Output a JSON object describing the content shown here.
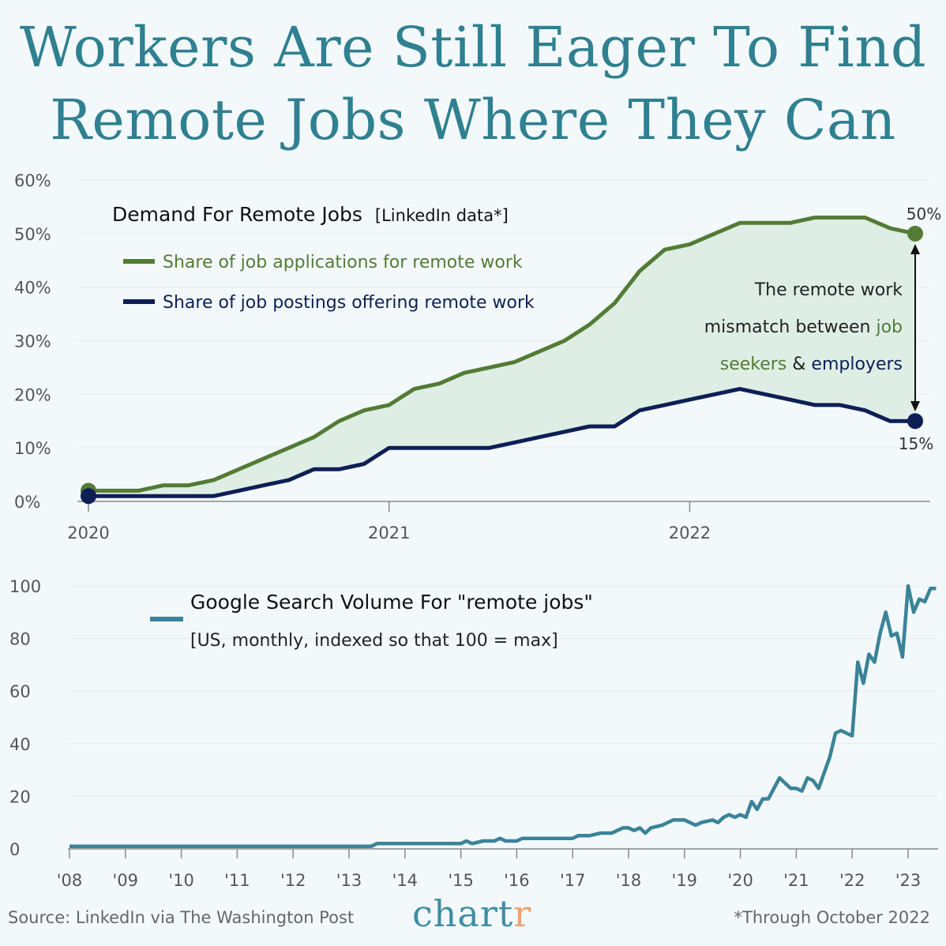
{
  "title": {
    "line1": "Workers Are Still Eager To Find",
    "line2": "Remote Jobs Where They Can"
  },
  "colors": {
    "title": "#2f8090",
    "applications": "#537b35",
    "postings": "#0d1f55",
    "fill": "#d9ece1",
    "google": "#3a8398",
    "background": "#f3f9fb"
  },
  "footer": {
    "source": "Source: LinkedIn via The Washington Post",
    "brand_main": "chart",
    "brand_accent": "r",
    "note": "*Through October 2022"
  },
  "chart_data": [
    {
      "type": "line",
      "title": "Demand For Remote Jobs",
      "subtitle": "[LinkedIn data*]",
      "ylim": [
        0,
        60
      ],
      "y_ticks": [
        "0%",
        "10%",
        "20%",
        "30%",
        "40%",
        "50%",
        "60%"
      ],
      "x_ticks": [
        "2020",
        "2021",
        "2022"
      ],
      "grid": true,
      "legend_position": "top-left",
      "series": [
        {
          "name": "Share of job applications for remote work",
          "x": [
            "2020-01",
            "2020-02",
            "2020-03",
            "2020-04",
            "2020-05",
            "2020-06",
            "2020-07",
            "2020-08",
            "2020-09",
            "2020-10",
            "2020-11",
            "2020-12",
            "2021-01",
            "2021-02",
            "2021-03",
            "2021-04",
            "2021-05",
            "2021-06",
            "2021-07",
            "2021-08",
            "2021-09",
            "2021-10",
            "2021-11",
            "2021-12",
            "2022-01",
            "2022-02",
            "2022-03",
            "2022-04",
            "2022-05",
            "2022-06",
            "2022-07",
            "2022-08",
            "2022-09",
            "2022-10"
          ],
          "values": [
            2,
            2,
            2,
            3,
            3,
            4,
            6,
            8,
            10,
            12,
            15,
            17,
            18,
            21,
            22,
            24,
            25,
            26,
            28,
            30,
            33,
            37,
            43,
            47,
            48,
            50,
            52,
            52,
            52,
            53,
            53,
            53,
            51,
            50
          ]
        },
        {
          "name": "Share of job postings offering remote work",
          "x": [
            "2020-01",
            "2020-02",
            "2020-03",
            "2020-04",
            "2020-05",
            "2020-06",
            "2020-07",
            "2020-08",
            "2020-09",
            "2020-10",
            "2020-11",
            "2020-12",
            "2021-01",
            "2021-02",
            "2021-03",
            "2021-04",
            "2021-05",
            "2021-06",
            "2021-07",
            "2021-08",
            "2021-09",
            "2021-10",
            "2021-11",
            "2021-12",
            "2022-01",
            "2022-02",
            "2022-03",
            "2022-04",
            "2022-05",
            "2022-06",
            "2022-07",
            "2022-08",
            "2022-09",
            "2022-10"
          ],
          "values": [
            1,
            1,
            1,
            1,
            1,
            1,
            2,
            3,
            4,
            6,
            6,
            7,
            10,
            10,
            10,
            10,
            10,
            11,
            12,
            13,
            14,
            14,
            17,
            18,
            19,
            20,
            21,
            20,
            19,
            18,
            18,
            17,
            15,
            15
          ]
        }
      ],
      "end_labels": {
        "applications": "50%",
        "postings": "15%"
      },
      "annotation": {
        "line1": "The remote work",
        "line2_a": "mismatch between ",
        "line2_b": "job",
        "line3_a": "seekers",
        "line3_b": " & ",
        "line3_c": "employers"
      }
    },
    {
      "type": "line",
      "title": "Google Search Volume For \"remote jobs\"",
      "subtitle": "[US, monthly, indexed so that 100 = max]",
      "ylim": [
        0,
        100
      ],
      "y_ticks": [
        "0",
        "20",
        "40",
        "60",
        "80",
        "100"
      ],
      "x_ticks": [
        "'08",
        "'09",
        "'10",
        "'11",
        "'12",
        "'13",
        "'14",
        "'15",
        "'16",
        "'17",
        "'18",
        "'19",
        "'20",
        "'21",
        "'22",
        "'23"
      ],
      "grid": true,
      "series": [
        {
          "name": "Google Search Volume For \"remote jobs\"",
          "x": [
            2008.0,
            2009.0,
            2010.0,
            2011.0,
            2012.0,
            2013.0,
            2013.4,
            2013.5,
            2014.0,
            2014.5,
            2015.0,
            2015.1,
            2015.2,
            2015.4,
            2015.6,
            2015.7,
            2015.8,
            2016.0,
            2016.1,
            2016.5,
            2017.0,
            2017.1,
            2017.3,
            2017.5,
            2017.7,
            2017.8,
            2017.9,
            2018.0,
            2018.1,
            2018.2,
            2018.3,
            2018.4,
            2018.6,
            2018.8,
            2018.9,
            2019.0,
            2019.1,
            2019.2,
            2019.3,
            2019.5,
            2019.6,
            2019.7,
            2019.8,
            2019.9,
            2020.0,
            2020.1,
            2020.2,
            2020.3,
            2020.4,
            2020.5,
            2020.6,
            2020.7,
            2020.9,
            2021.0,
            2021.1,
            2021.2,
            2021.3,
            2021.4,
            2021.5,
            2021.6,
            2021.7,
            2021.8,
            2021.9,
            2022.0,
            2022.1,
            2022.2,
            2022.3,
            2022.4,
            2022.5,
            2022.6,
            2022.7,
            2022.8,
            2022.9,
            2023.0,
            2023.1,
            2023.2,
            2023.3,
            2023.4,
            2023.45,
            2023.5
          ],
          "values": [
            1,
            1,
            1,
            1,
            1,
            1,
            1,
            2,
            2,
            2,
            2,
            3,
            2,
            3,
            3,
            4,
            3,
            3,
            4,
            4,
            4,
            5,
            5,
            6,
            6,
            7,
            8,
            8,
            7,
            8,
            6,
            8,
            9,
            11,
            11,
            11,
            10,
            9,
            10,
            11,
            10,
            12,
            13,
            12,
            13,
            12,
            18,
            15,
            19,
            19,
            23,
            27,
            23,
            23,
            22,
            27,
            26,
            23,
            29,
            35,
            44,
            45,
            44,
            43,
            71,
            63,
            74,
            71,
            82,
            90,
            81,
            82,
            73,
            100,
            90,
            95,
            94,
            99,
            99,
            99
          ]
        }
      ]
    }
  ]
}
